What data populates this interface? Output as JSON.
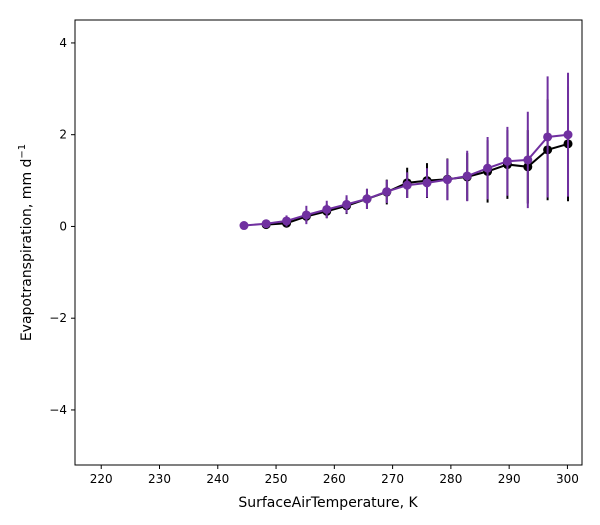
{
  "chart_data": {
    "type": "line",
    "xlabel": "SurfaceAirTemperature,  K",
    "ylabel": "Evapotranspiration,  mm d",
    "ylabel_superscript": "−1",
    "xlim": [
      215.5,
      302.5
    ],
    "ylim": [
      -5.2,
      4.5
    ],
    "xticks": [
      220,
      230,
      240,
      250,
      260,
      270,
      280,
      290,
      300
    ],
    "yticks": [
      -4,
      -2,
      0,
      2,
      4
    ],
    "ytick_labels": [
      "−4",
      "−2",
      "0",
      "2",
      "4"
    ],
    "grid": false,
    "legend": false,
    "series": [
      {
        "color": "#000000",
        "x": [
          248.3,
          251.8,
          255.2,
          258.7,
          262.1,
          265.6,
          269.0,
          272.5,
          275.9,
          279.4,
          282.8,
          286.3,
          289.7,
          293.2,
          296.6,
          300.1
        ],
        "y": [
          0.04,
          0.07,
          0.22,
          0.33,
          0.45,
          0.6,
          0.75,
          0.95,
          1.0,
          1.03,
          1.08,
          1.2,
          1.35,
          1.3,
          1.67,
          1.8
        ],
        "err": [
          0.04,
          0.09,
          0.12,
          0.15,
          0.18,
          0.22,
          0.27,
          0.33,
          0.38,
          0.45,
          0.52,
          0.68,
          0.75,
          0.8,
          1.1,
          1.25
        ]
      },
      {
        "color": "#7030a0",
        "x": [
          244.5,
          248.3,
          251.8,
          255.2,
          258.7,
          262.1,
          265.6,
          269.0,
          272.5,
          275.9,
          279.4,
          282.8,
          286.3,
          289.7,
          293.2,
          296.6,
          300.1
        ],
        "y": [
          0.02,
          0.06,
          0.12,
          0.25,
          0.37,
          0.48,
          0.6,
          0.76,
          0.9,
          0.95,
          1.02,
          1.1,
          1.27,
          1.42,
          1.45,
          1.95,
          2.0
        ],
        "err": [
          0.02,
          0.05,
          0.12,
          0.2,
          0.19,
          0.2,
          0.22,
          0.25,
          0.28,
          0.32,
          0.45,
          0.55,
          0.68,
          0.75,
          1.05,
          1.32,
          1.35
        ]
      }
    ]
  }
}
